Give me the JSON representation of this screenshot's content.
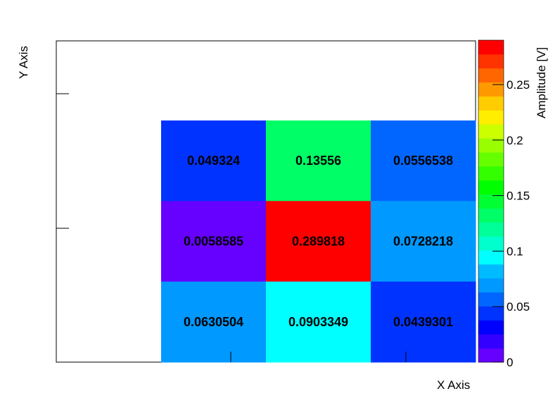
{
  "chart_data": {
    "type": "heatmap",
    "xlabel": "X Axis",
    "ylabel": "Y Axis",
    "zlabel": "Amplitude [V]",
    "grid": false,
    "cells_rows_top_to_bottom": [
      [
        "0.049324",
        "0.13556",
        "0.0556538"
      ],
      [
        "0.0058585",
        "0.289818",
        "0.0728218"
      ],
      [
        "0.0630504",
        "0.0903349",
        "0.0439301"
      ]
    ],
    "values_rows_top_to_bottom": [
      [
        0.049324,
        0.13556,
        0.0556538
      ],
      [
        0.0058585,
        0.289818,
        0.0728218
      ],
      [
        0.0630504,
        0.0903349,
        0.0439301
      ]
    ],
    "zlim": [
      0,
      0.29
    ],
    "colorbar_ticks": [
      "0",
      "0.05",
      "0.1",
      "0.15",
      "0.2",
      "0.25"
    ],
    "colorbar_tick_values": [
      0,
      0.05,
      0.1,
      0.15,
      0.2,
      0.25
    ]
  },
  "palette": [
    "#6600ff",
    "#3300ff",
    "#0000ff",
    "#0033ff",
    "#0066ff",
    "#0099ff",
    "#00bbff",
    "#00ffff",
    "#00ffcc",
    "#00ff99",
    "#00ff66",
    "#00ff33",
    "#00ff00",
    "#33ff00",
    "#66ff00",
    "#99ff00",
    "#ccff00",
    "#ffee00",
    "#ffcc00",
    "#ff9900",
    "#ff6600",
    "#ff3300",
    "#ff0000"
  ]
}
